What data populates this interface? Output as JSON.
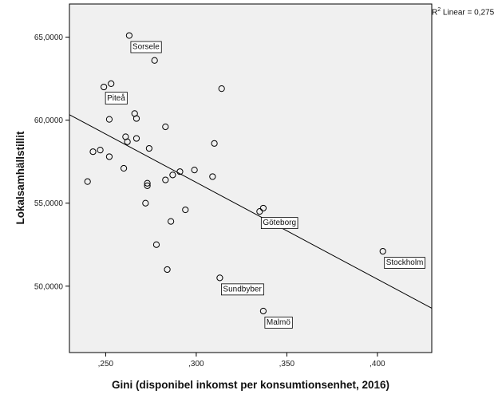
{
  "chart_data": {
    "type": "scatter",
    "title": "",
    "xlabel": "Gini (disponibel inkomst per konsumtionsenhet, 2016)",
    "ylabel": "Lokalsamhällstillit",
    "xlim": [
      0.23,
      0.43
    ],
    "ylim": [
      46000,
      67000
    ],
    "xticks": [
      0.25,
      0.3,
      0.35,
      0.4
    ],
    "xtick_labels": [
      ",250",
      ",300",
      ",350",
      ",400"
    ],
    "yticks": [
      50000,
      55000,
      60000,
      65000
    ],
    "ytick_labels": [
      "50,0000",
      "55,0000",
      "60,0000",
      "65,0000"
    ],
    "grid": false,
    "legend": "none",
    "fit_line": {
      "label": "R² Linear = 0,275",
      "r2_prefix": "R",
      "r2_suffix": " Linear = 0,275",
      "x": [
        0.23,
        0.43
      ],
      "y": [
        60330,
        48670
      ]
    },
    "points": [
      {
        "x": 0.263,
        "y": 65100,
        "label": "Sorsele"
      },
      {
        "x": 0.277,
        "y": 63600
      },
      {
        "x": 0.253,
        "y": 62200
      },
      {
        "x": 0.249,
        "y": 62000,
        "label": "Piteå"
      },
      {
        "x": 0.314,
        "y": 61900
      },
      {
        "x": 0.266,
        "y": 60400
      },
      {
        "x": 0.267,
        "y": 60100
      },
      {
        "x": 0.252,
        "y": 60050
      },
      {
        "x": 0.283,
        "y": 59600
      },
      {
        "x": 0.261,
        "y": 59000
      },
      {
        "x": 0.267,
        "y": 58900
      },
      {
        "x": 0.262,
        "y": 58700
      },
      {
        "x": 0.31,
        "y": 58600
      },
      {
        "x": 0.274,
        "y": 58300
      },
      {
        "x": 0.247,
        "y": 58200
      },
      {
        "x": 0.243,
        "y": 58100
      },
      {
        "x": 0.252,
        "y": 57800
      },
      {
        "x": 0.26,
        "y": 57100
      },
      {
        "x": 0.299,
        "y": 57000
      },
      {
        "x": 0.291,
        "y": 56900
      },
      {
        "x": 0.287,
        "y": 56700
      },
      {
        "x": 0.309,
        "y": 56600
      },
      {
        "x": 0.283,
        "y": 56400
      },
      {
        "x": 0.24,
        "y": 56300
      },
      {
        "x": 0.273,
        "y": 56200
      },
      {
        "x": 0.273,
        "y": 56050
      },
      {
        "x": 0.272,
        "y": 55000
      },
      {
        "x": 0.337,
        "y": 54700
      },
      {
        "x": 0.294,
        "y": 54600
      },
      {
        "x": 0.335,
        "y": 54500,
        "label": "Göteborg"
      },
      {
        "x": 0.286,
        "y": 53900
      },
      {
        "x": 0.278,
        "y": 52500
      },
      {
        "x": 0.403,
        "y": 52100,
        "label": "Stockholm"
      },
      {
        "x": 0.284,
        "y": 51000
      },
      {
        "x": 0.313,
        "y": 50500,
        "label": "Sundbyber"
      },
      {
        "x": 0.337,
        "y": 48500,
        "label": "Malmö"
      }
    ]
  }
}
